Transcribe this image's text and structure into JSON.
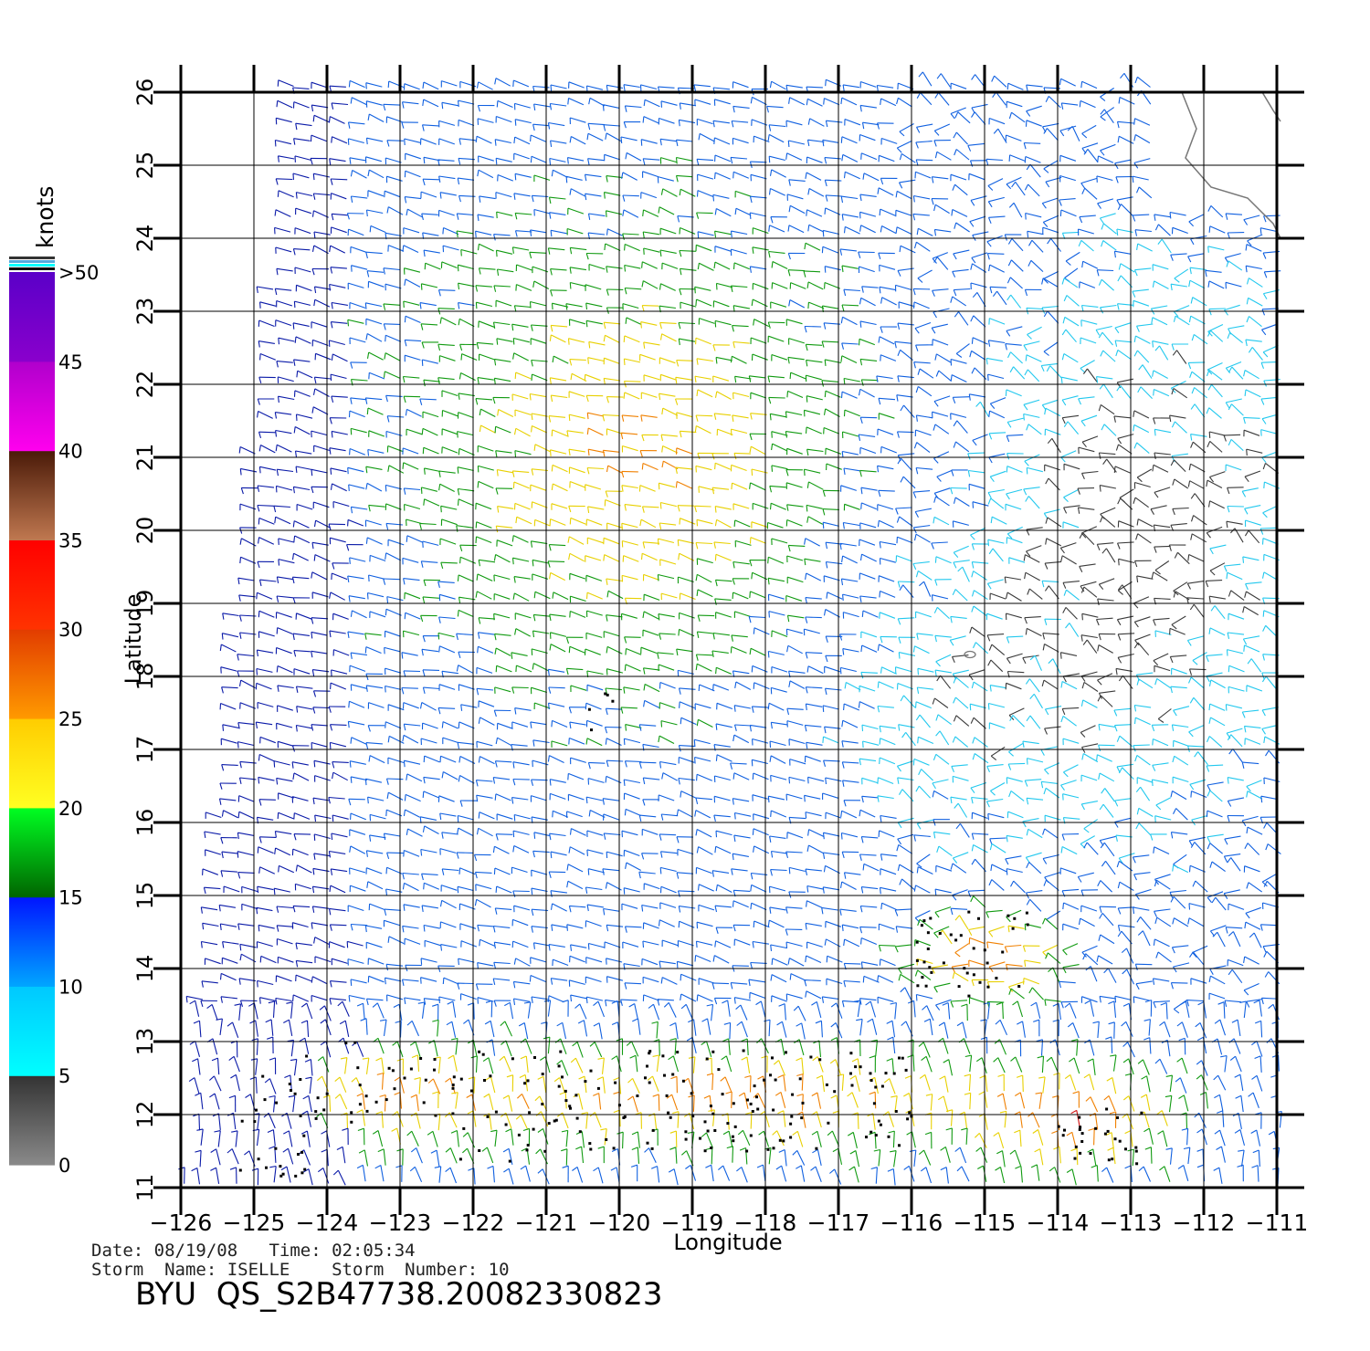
{
  "map": {
    "lon_range": [
      -126,
      -111
    ],
    "lat_range": [
      11,
      26
    ],
    "x_tick_labels": [
      "−126",
      "−125",
      "−124",
      "−123",
      "−122",
      "−121",
      "−120",
      "−119",
      "−118",
      "−117",
      "−116",
      "−115",
      "−114",
      "−113",
      "−112",
      "−111"
    ],
    "y_tick_labels": [
      "11",
      "12",
      "13",
      "14",
      "15",
      "16",
      "17",
      "18",
      "19",
      "20",
      "21",
      "22",
      "23",
      "24",
      "25",
      "26"
    ],
    "xlabel": "Longitude",
    "ylabel": "Latitude",
    "grid": true
  },
  "legend": {
    "unit": "knots",
    "tick_labels": [
      "0",
      "5",
      "10",
      "15",
      "20",
      "25",
      "30",
      "35",
      "40",
      "45",
      ">50"
    ],
    "bands": [
      {
        "from": 0,
        "to": 5,
        "top_color": "#333333",
        "bottom_color": "#8a8a8a"
      },
      {
        "from": 5,
        "to": 10,
        "top_color": "#00c8ff",
        "bottom_color": "#00ffff"
      },
      {
        "from": 10,
        "to": 15,
        "top_color": "#0014ff",
        "bottom_color": "#00a6ff"
      },
      {
        "from": 15,
        "to": 20,
        "top_color": "#00ff22",
        "bottom_color": "#006400"
      },
      {
        "from": 20,
        "to": 25,
        "top_color": "#ffcc00",
        "bottom_color": "#ffff22"
      },
      {
        "from": 25,
        "to": 30,
        "top_color": "#e23c00",
        "bottom_color": "#ff9a00"
      },
      {
        "from": 30,
        "to": 35,
        "top_color": "#ff0000",
        "bottom_color": "#ff3300"
      },
      {
        "from": 35,
        "to": 40,
        "top_color": "#4a1a08",
        "bottom_color": "#c07850"
      },
      {
        "from": 40,
        "to": 45,
        "top_color": "#b000cc",
        "bottom_color": "#ff00ee"
      },
      {
        "from": 45,
        "to": 50,
        "top_color": "#5a00c8",
        "bottom_color": "#8a00cc"
      }
    ]
  },
  "wind_colors": {
    "calm": "#3a3a3a",
    "light": "#22c8ee",
    "moderate": "#1060e0",
    "strong_blue": "#0a1aa8",
    "green": "#109a10",
    "yellow": "#e8d000",
    "orange": "#f08000",
    "red": "#d01010",
    "magenta": "#d020c0",
    "rain_flag": "#000000",
    "coast": "#777777"
  },
  "info": {
    "date_time": "Date: 08/19/08   Time: 02:05:34",
    "storm": "Storm  Name: ISELLE    Storm  Number: 10",
    "product_id": "BYU  QS_S2B47738.20082330823"
  }
}
